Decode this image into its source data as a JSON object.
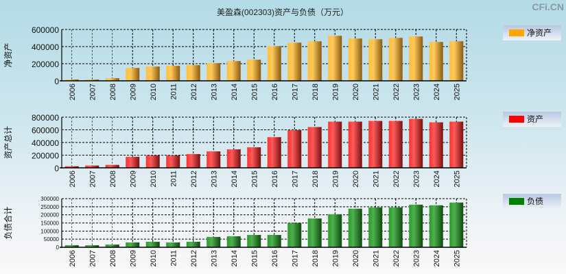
{
  "title": "美盈森(002303)资产与负债（万元）",
  "watermark": "CFi.CN",
  "chart_data": [
    {
      "type": "bar",
      "ylabel": "净资产",
      "legend": "净资产",
      "color": "#FFA500",
      "ylim": [
        0,
        600000
      ],
      "yticks": [
        "0",
        "200000",
        "400000",
        "600000"
      ],
      "categories": [
        "2006",
        "2007",
        "2008",
        "2009",
        "2010",
        "2011",
        "2012",
        "2013",
        "2014",
        "2015",
        "2016",
        "2017",
        "2018",
        "2019",
        "2020",
        "2021",
        "2022",
        "2023",
        "2024",
        "2025"
      ],
      "values": [
        16000,
        16000,
        32000,
        151000,
        167000,
        175000,
        183000,
        207000,
        231000,
        247000,
        406000,
        446000,
        462000,
        526000,
        494000,
        486000,
        502000,
        518000,
        454000,
        462000
      ],
      "legend_position": "right"
    },
    {
      "type": "bar",
      "ylabel": "资产总计",
      "legend": "资产",
      "color": "#FF0000",
      "ylim": [
        0,
        800000
      ],
      "yticks": [
        "0",
        "200000",
        "400000",
        "600000",
        "800000"
      ],
      "categories": [
        "2006",
        "2007",
        "2008",
        "2009",
        "2010",
        "2011",
        "2012",
        "2013",
        "2014",
        "2015",
        "2016",
        "2017",
        "2018",
        "2019",
        "2020",
        "2021",
        "2022",
        "2023",
        "2024",
        "2025"
      ],
      "values": [
        25000,
        36000,
        46000,
        174000,
        196000,
        196000,
        217000,
        260000,
        292000,
        324000,
        484000,
        594000,
        644000,
        729000,
        729000,
        740000,
        740000,
        772000,
        718000,
        729000
      ],
      "legend_position": "right"
    },
    {
      "type": "bar",
      "ylabel": "负债合计",
      "legend": "负债",
      "color": "#008000",
      "ylim": [
        0,
        300000
      ],
      "yticks": [
        "0",
        "50000",
        "100000",
        "150000",
        "200000",
        "250000",
        "300000"
      ],
      "categories": [
        "2006",
        "2007",
        "2008",
        "2009",
        "2010",
        "2011",
        "2012",
        "2013",
        "2014",
        "2015",
        "2016",
        "2017",
        "2018",
        "2019",
        "2020",
        "2021",
        "2022",
        "2023",
        "2024",
        "2025"
      ],
      "values": [
        12700,
        12700,
        17000,
        30000,
        34000,
        30000,
        34000,
        64000,
        68000,
        76000,
        76000,
        150000,
        178000,
        204000,
        238000,
        246000,
        246000,
        263000,
        259000,
        276000
      ],
      "legend_position": "right"
    }
  ]
}
